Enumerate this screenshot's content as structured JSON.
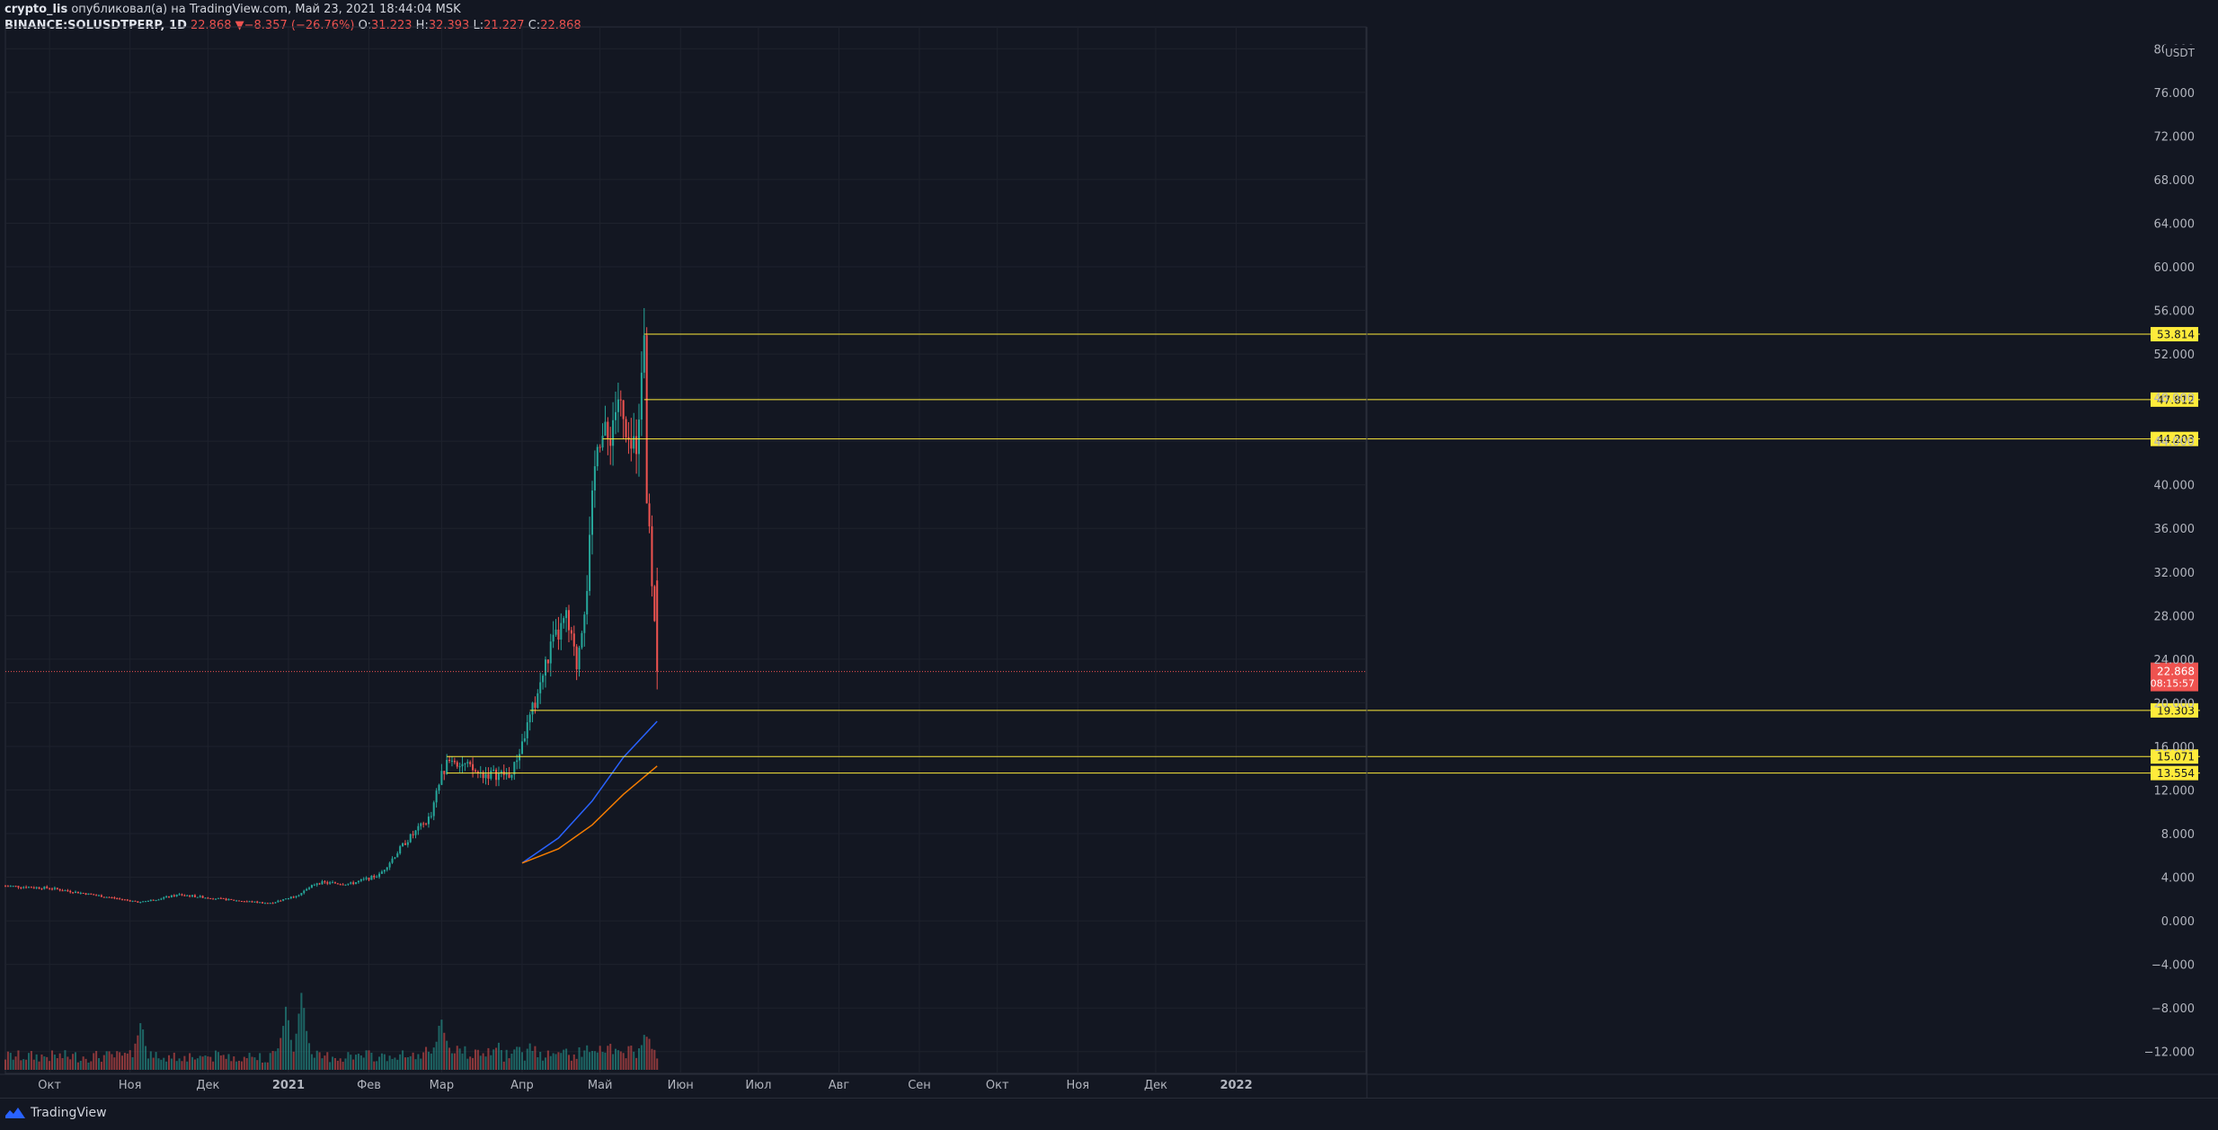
{
  "header": {
    "user": "crypto_lis",
    "published_text": "опубликовал(а) на TradingView.com, Май 23, 2021 18:44:04 MSK",
    "symbol": "BINANCE:SOLUSDTPERP, 1D",
    "last": "22.868",
    "change": "−8.357 (−26.76%)",
    "o_label": "O:",
    "o": "31.223",
    "h_label": "H:",
    "h": "32.393",
    "l_label": "L:",
    "l": "21.227",
    "c_label": "C:",
    "c": "22.868"
  },
  "footer": {
    "brand": "TradingView"
  },
  "colors": {
    "bg": "#131722",
    "grid": "#1e222d",
    "up": "#26a69a",
    "down": "#ef5350",
    "level": "#ffeb3b",
    "ma_fast": "#2962ff",
    "ma_slow": "#f57c00",
    "text": "#b2b5be"
  },
  "chart_data": {
    "type": "candlestick",
    "currency": "USDT",
    "y_ticks": [
      80,
      76,
      72,
      68,
      64,
      60,
      56,
      52,
      48,
      44,
      40,
      36,
      32,
      28,
      24,
      20,
      16,
      12,
      8,
      4,
      0,
      -4,
      -8,
      -12
    ],
    "y_tick_labels": [
      "80.000",
      "76.000",
      "72.000",
      "68.000",
      "64.000",
      "60.000",
      "56.000",
      "52.000",
      "48.000",
      "44.000",
      "40.000",
      "36.000",
      "32.000",
      "28.000",
      "24.000",
      "20.000",
      "16.000",
      "12.000",
      "8.000",
      "4.000",
      "0.000",
      "−4.000",
      "−8.000",
      "−12.000"
    ],
    "ylim": [
      -14,
      82
    ],
    "x_start": "2020-09-14",
    "x_end": "2022-02-20",
    "x_labels": [
      {
        "date": "2020-10-01",
        "label": "Окт"
      },
      {
        "date": "2020-11-01",
        "label": "Ноя"
      },
      {
        "date": "2020-12-01",
        "label": "Дек"
      },
      {
        "date": "2021-01-01",
        "label": "2021"
      },
      {
        "date": "2021-02-01",
        "label": "Фев"
      },
      {
        "date": "2021-03-01",
        "label": "Мар"
      },
      {
        "date": "2021-04-01",
        "label": "Апр"
      },
      {
        "date": "2021-05-01",
        "label": "Май"
      },
      {
        "date": "2021-06-01",
        "label": "Июн"
      },
      {
        "date": "2021-07-01",
        "label": "Июл"
      },
      {
        "date": "2021-08-01",
        "label": "Авг"
      },
      {
        "date": "2021-09-01",
        "label": "Сен"
      },
      {
        "date": "2021-10-01",
        "label": "Окт"
      },
      {
        "date": "2021-11-01",
        "label": "Ноя"
      },
      {
        "date": "2021-12-01",
        "label": "Дек"
      },
      {
        "date": "2022-01-01",
        "label": "2022"
      }
    ],
    "price_path": [
      {
        "date": "2020-09-14",
        "close": 3.2
      },
      {
        "date": "2020-10-01",
        "close": 3.0
      },
      {
        "date": "2020-10-20",
        "close": 2.3
      },
      {
        "date": "2020-11-05",
        "close": 1.7
      },
      {
        "date": "2020-11-20",
        "close": 2.4
      },
      {
        "date": "2020-12-10",
        "close": 1.9
      },
      {
        "date": "2020-12-25",
        "close": 1.6
      },
      {
        "date": "2021-01-05",
        "close": 2.4
      },
      {
        "date": "2021-01-12",
        "close": 3.5
      },
      {
        "date": "2021-01-25",
        "close": 3.4
      },
      {
        "date": "2021-02-05",
        "close": 4.2
      },
      {
        "date": "2021-02-15",
        "close": 7.2
      },
      {
        "date": "2021-02-25",
        "close": 9.6
      },
      {
        "date": "2021-03-01",
        "close": 13.5
      },
      {
        "date": "2021-03-05",
        "close": 15.0
      },
      {
        "date": "2021-03-15",
        "close": 13.5
      },
      {
        "date": "2021-03-28",
        "close": 13.4
      },
      {
        "date": "2021-04-05",
        "close": 19.3
      },
      {
        "date": "2021-04-12",
        "close": 25.0
      },
      {
        "date": "2021-04-18",
        "close": 27.6
      },
      {
        "date": "2021-04-22",
        "close": 23.5
      },
      {
        "date": "2021-04-26",
        "close": 31.0
      },
      {
        "date": "2021-04-30",
        "close": 45.0
      },
      {
        "date": "2021-05-04",
        "close": 44.0
      },
      {
        "date": "2021-05-08",
        "close": 48.0
      },
      {
        "date": "2021-05-12",
        "close": 42.5
      },
      {
        "date": "2021-05-15",
        "close": 44.2
      },
      {
        "date": "2021-05-18",
        "close": 54.5
      },
      {
        "date": "2021-05-19",
        "close": 38.5
      },
      {
        "date": "2021-05-21",
        "close": 31.2
      },
      {
        "date": "2021-05-23",
        "close": 22.868
      }
    ],
    "volume_peaks": [
      {
        "date": "2020-11-05",
        "volume": 0.6
      },
      {
        "date": "2020-12-31",
        "volume": 0.8
      },
      {
        "date": "2021-01-06",
        "volume": 1.0
      },
      {
        "date": "2021-03-01",
        "volume": 0.55
      },
      {
        "date": "2021-05-19",
        "volume": 0.45
      }
    ],
    "levels": [
      {
        "price": 53.814,
        "label": "53.814"
      },
      {
        "price": 47.812,
        "label": "47.812"
      },
      {
        "price": 44.203,
        "label": "44.203"
      },
      {
        "price": 19.303,
        "label": "19.303"
      },
      {
        "price": 15.071,
        "label": "15.071"
      },
      {
        "price": 13.554,
        "label": "13.554"
      }
    ],
    "current_price": {
      "price": 22.868,
      "label": "22.868",
      "countdown": "08:15:57"
    },
    "ma_fast": [
      {
        "date": "2021-04-01",
        "value": 5.3
      },
      {
        "date": "2021-04-15",
        "value": 7.6
      },
      {
        "date": "2021-04-28",
        "value": 11.0
      },
      {
        "date": "2021-05-10",
        "value": 15.0
      },
      {
        "date": "2021-05-23",
        "value": 18.3
      }
    ],
    "ma_slow": [
      {
        "date": "2021-04-01",
        "value": 5.3
      },
      {
        "date": "2021-04-15",
        "value": 6.6
      },
      {
        "date": "2021-04-28",
        "value": 8.8
      },
      {
        "date": "2021-05-10",
        "value": 11.6
      },
      {
        "date": "2021-05-23",
        "value": 14.2
      }
    ]
  }
}
